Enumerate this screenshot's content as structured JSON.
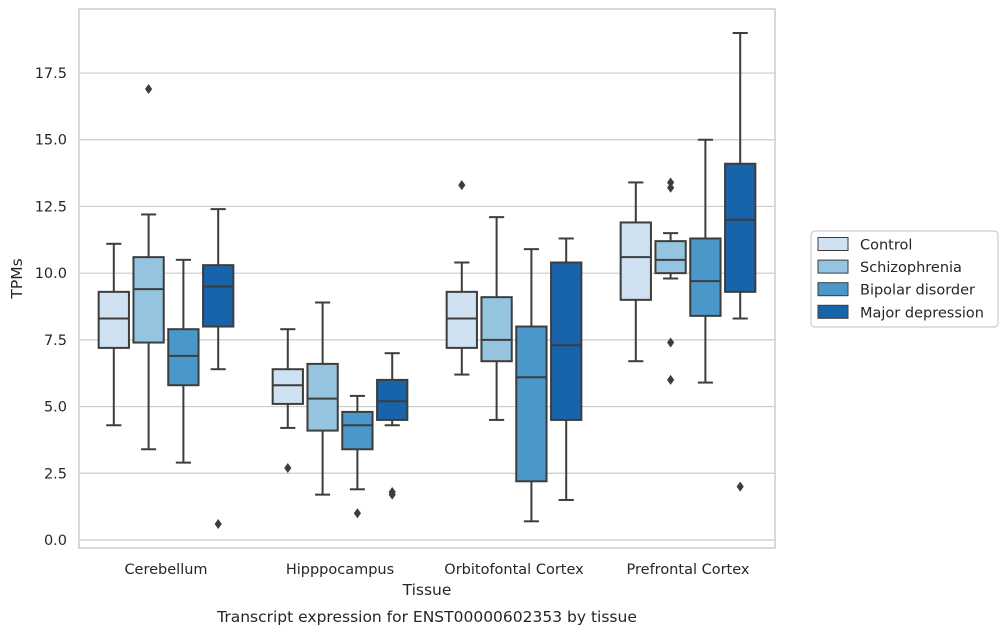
{
  "chart_data": {
    "type": "boxplot",
    "title": "",
    "caption": "Transcript expression for ENST00000602353 by tissue",
    "xlabel": "Tissue",
    "ylabel": "TPMs",
    "ylim": [
      -0.3,
      19.9
    ],
    "yticks": [
      "0.0",
      "2.5",
      "5.0",
      "7.5",
      "10.0",
      "12.5",
      "15.0",
      "17.5"
    ],
    "grid": "horizontal",
    "legend_position": "right",
    "categories": [
      "Cerebellum",
      "Hipppocampus",
      "Orbitofontal Cortex",
      "Prefrontal Cortex"
    ],
    "series": [
      {
        "name": "Control",
        "color": "#d0e1f2",
        "boxes": [
          {
            "whislo": 4.3,
            "q1": 7.2,
            "med": 8.3,
            "q3": 9.3,
            "whishi": 11.1,
            "fliers": []
          },
          {
            "whislo": 4.2,
            "q1": 5.1,
            "med": 5.8,
            "q3": 6.4,
            "whishi": 7.9,
            "fliers": [
              2.7
            ]
          },
          {
            "whislo": 6.2,
            "q1": 7.2,
            "med": 8.3,
            "q3": 9.3,
            "whishi": 10.4,
            "fliers": [
              13.3
            ]
          },
          {
            "whislo": 6.7,
            "q1": 9.0,
            "med": 10.6,
            "q3": 11.9,
            "whishi": 13.4,
            "fliers": []
          }
        ]
      },
      {
        "name": "Schizophrenia",
        "color": "#94c4df",
        "boxes": [
          {
            "whislo": 3.4,
            "q1": 7.4,
            "med": 9.4,
            "q3": 10.6,
            "whishi": 12.2,
            "fliers": [
              16.9
            ]
          },
          {
            "whislo": 1.7,
            "q1": 4.1,
            "med": 5.3,
            "q3": 6.6,
            "whishi": 8.9,
            "fliers": []
          },
          {
            "whislo": 4.5,
            "q1": 6.7,
            "med": 7.5,
            "q3": 9.1,
            "whishi": 12.1,
            "fliers": []
          },
          {
            "whislo": 9.8,
            "q1": 10.0,
            "med": 10.5,
            "q3": 11.2,
            "whishi": 11.5,
            "fliers": [
              13.4,
              13.2,
              7.4,
              6.0
            ]
          }
        ]
      },
      {
        "name": "Bipolar disorder",
        "color": "#4a98c9",
        "boxes": [
          {
            "whislo": 2.9,
            "q1": 5.8,
            "med": 6.9,
            "q3": 7.9,
            "whishi": 10.5,
            "fliers": []
          },
          {
            "whislo": 1.9,
            "q1": 3.4,
            "med": 4.3,
            "q3": 4.8,
            "whishi": 5.4,
            "fliers": [
              1.0
            ]
          },
          {
            "whislo": 0.7,
            "q1": 2.2,
            "med": 6.1,
            "q3": 8.0,
            "whishi": 10.9,
            "fliers": []
          },
          {
            "whislo": 5.9,
            "q1": 8.4,
            "med": 9.7,
            "q3": 11.3,
            "whishi": 15.0,
            "fliers": []
          }
        ]
      },
      {
        "name": "Major depression",
        "color": "#1764ab",
        "boxes": [
          {
            "whislo": 6.4,
            "q1": 8.0,
            "med": 9.5,
            "q3": 10.3,
            "whishi": 12.4,
            "fliers": [
              0.6
            ]
          },
          {
            "whislo": 4.3,
            "q1": 4.5,
            "med": 5.2,
            "q3": 6.0,
            "whishi": 7.0,
            "fliers": [
              1.8,
              1.7
            ]
          },
          {
            "whislo": 1.5,
            "q1": 4.5,
            "med": 7.3,
            "q3": 10.4,
            "whishi": 11.3,
            "fliers": []
          },
          {
            "whislo": 8.3,
            "q1": 9.3,
            "med": 12.0,
            "q3": 14.1,
            "whishi": 19.0,
            "fliers": [
              2.0
            ]
          }
        ]
      }
    ]
  }
}
